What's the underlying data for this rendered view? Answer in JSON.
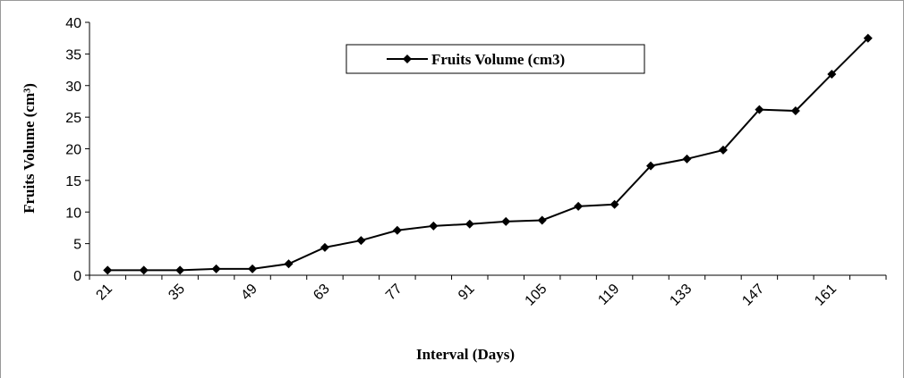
{
  "chart_data": {
    "type": "line",
    "x_label": "Interval (Days)",
    "y_label": "Fruits Volume (cm³)",
    "categories": [
      "21",
      null,
      "35",
      null,
      "49",
      null,
      "63",
      null,
      "77",
      null,
      "91",
      null,
      "105",
      null,
      "119",
      null,
      "133",
      null,
      "147",
      null,
      "161",
      null
    ],
    "series": [
      {
        "name": "Fruits Volume (cm3)",
        "color": "#000000",
        "values": [
          0.8,
          0.8,
          0.8,
          1.0,
          1.0,
          1.8,
          4.4,
          5.5,
          7.1,
          7.8,
          8.1,
          8.5,
          8.7,
          10.9,
          11.2,
          17.3,
          18.4,
          19.8,
          26.2,
          26.0,
          31.8,
          37.5
        ]
      }
    ],
    "ylim": [
      0,
      40
    ],
    "yticks": [
      0,
      5,
      10,
      15,
      20,
      25,
      30,
      35,
      40
    ],
    "legend": "top",
    "grid": false
  }
}
